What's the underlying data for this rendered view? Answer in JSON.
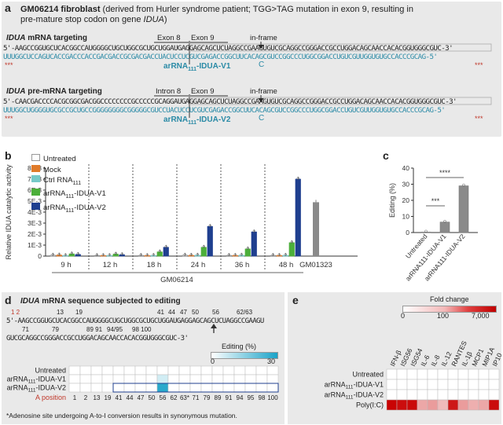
{
  "panel_a": {
    "label": "a",
    "title_bold": "GM06214 fibroblast",
    "title_rest": " (derived from Hurler syndrome patient; TGG>TAG mutation in exon 9, resulting in",
    "title_line2a": "pre-mature stop codon on gene ",
    "title_line2b": "IDUA",
    "title_line2c": ")",
    "mrna_heading_italic": "IDUA",
    "mrna_heading_rest": " mRNA targeting",
    "exon8": "Exon 8",
    "exon9": "Exon 9",
    "inframe": "in-frame",
    "mrna_top_prefix": "5'-",
    "mrna_top_seq": "AAGCCGGUGCUCACGGCCAUGGGGCUGCUGGCGCUGCUGGAUGAGGAGCAGCUCUAGGCCGAAGUGUCGCAGGCCGGGACCGCCUGGACAGCAACCACACGGUGGGCGUC",
    "mrna_top_suffix": "-3'",
    "mrna_bot_seq": "UUUGGCUCCAGUCACCGACCCACCGACGACCGCGACGACCUACUCCUCGUCGAGACCGGCUUCACAGCGUCCGGCCCUGGCGGACCUGUCGUUGGUGUGCCACCCGCAG",
    "mrna_bot_suffix": "-5'",
    "guide1": "arRNA",
    "guide1_sub": "111",
    "guide1_rest": "-IDUA-V1",
    "mm_c": "C",
    "pre_heading_italic": "IDUA",
    "pre_heading_rest": " pre-mRNA targeting",
    "intron8": "Intron 8",
    "exon9b": "Exon 9",
    "inframe2": "in-frame",
    "pre_top_prefix": "5'-",
    "pre_top_seq": "CAACGACCCCACGCGGCGACGGCCCCCCCCGCCCCCGCAGGAUGAGGAGCAGCUCUAGGCCGAAGUGUCGCAGGCCGGGACCGCCUGGACAGCAACCACACGGUGGGCGUC",
    "pre_top_suffix": "-3'",
    "pre_bot_seq": "UUUGGCUGGGGUGCGCCGCUGCCGGGGGGGGCGGGGGCGUCCUACUCCUCGUCGAGACCGGCUUCACAGCGUCCGGCCCUGGCGGACCUGUCGUUGGUGUGCCACCCGCAG",
    "pre_bot_suffix": "-5'",
    "guide2": "arRNA",
    "guide2_sub": "111",
    "guide2_rest": "-IDUA-V2",
    "mm_c2": "C",
    "stars": "***"
  },
  "panel_b": {
    "label": "b",
    "legend": [
      "Untreated",
      "Mock",
      "Ctrl RNA",
      "arRNA",
      "arRNA"
    ],
    "legend_sub": [
      "",
      "",
      "111",
      "111",
      "111"
    ],
    "legend_rest": [
      "",
      "",
      "",
      "-IDUA-V1",
      "-IDUA-V2"
    ],
    "colors": {
      "untreated": "#ffffff",
      "mock": "#e07b2a",
      "ctrl": "#77c9c8",
      "v1": "#4caf3a",
      "v2": "#1f3f8f",
      "gm01323": "#8a8a8a"
    },
    "gm06214": "GM06214",
    "gm01323": "GM01323"
  },
  "panel_c": {
    "label": "c",
    "sig1": "***",
    "sig2": "****"
  },
  "panel_d": {
    "label": "d",
    "heading_italic": "IDUA",
    "heading_rest": " mRNA sequence subjected to editing",
    "line1_prefix": "5'-",
    "line1_seq": "AAGCCGGUGCUCACGGCCAUGGGGCUGCUGGCGCUGCUGGAUGAGGAGCAGCUCUAGGCCGAAGU",
    "line2_seq": "GUCGCAGGCCGGGACCGCCUGGACAGCAACCACACGGUGGGCGUC",
    "line2_suffix": "-3'",
    "pos_top": [
      "1 2",
      "13",
      "19",
      "41",
      "44",
      "47",
      "50",
      "56",
      "62/63"
    ],
    "pos_bot": [
      "71",
      "79",
      "89 91",
      "94/95",
      "98 100"
    ],
    "editing_label": "Editing (%)",
    "editing_min": "0",
    "editing_max": "30",
    "rows": [
      "Untreated",
      "arRNA",
      "arRNA"
    ],
    "rows_sub": [
      "",
      "111",
      "111"
    ],
    "rows_rest": [
      "",
      "-IDUA-V1",
      "-IDUA-V2"
    ],
    "a_position_label": "A position",
    "positions": [
      "1",
      "2",
      "13",
      "19",
      "41",
      "44",
      "47",
      "50",
      "56",
      "62",
      "63*",
      "71",
      "79",
      "89",
      "91",
      "94",
      "95",
      "98",
      "100"
    ],
    "footnote": "*Adenosine site undergoing A-to-I conversion results in synonymous mutation."
  },
  "panel_e": {
    "label": "e",
    "fold_label": "Fold change",
    "scale_min": "0",
    "scale_mid": "100",
    "scale_max": "7,000",
    "columns": [
      "IFN-β",
      "ISG56",
      "ISG54",
      "IL-6",
      "IL-8",
      "IL-12",
      "RANTES",
      "IL-1β",
      "MCP1",
      "MIP1A",
      "IP10"
    ],
    "rows": [
      "Untreated",
      "arRNA",
      "arRNA",
      "Poly(I:C)"
    ],
    "rows_sub": [
      "",
      "111",
      "111",
      ""
    ],
    "rows_rest": [
      "",
      "-IDUA-V1",
      "-IDUA-V2",
      ""
    ]
  },
  "chart_data": [
    {
      "type": "bar",
      "title": "",
      "ylabel": "Relative IDUA catalytic activity",
      "ylim": [
        0,
        0.008
      ],
      "yticks": [
        "0",
        "1E-3",
        "2E-3",
        "3E-3",
        "4E-3",
        "5E-3",
        "6E-3",
        "7E-3",
        "8E-3"
      ],
      "categories": [
        "9 h",
        "12 h",
        "18 h",
        "24 h",
        "36 h",
        "48 h",
        "GM01323"
      ],
      "series": [
        {
          "name": "Untreated",
          "values": [
            8e-05,
            5e-05,
            6e-05,
            8e-05,
            6e-05,
            6e-05,
            null
          ]
        },
        {
          "name": "Mock",
          "values": [
            0.0001,
            5e-05,
            5e-05,
            7e-05,
            6e-05,
            6e-05,
            null
          ]
        },
        {
          "name": "Ctrl RNA111",
          "values": [
            5e-05,
            5e-05,
            6e-05,
            8e-05,
            8e-05,
            7e-05,
            null
          ]
        },
        {
          "name": "arRNA111-IDUA-V1",
          "values": [
            0.0002,
            0.00018,
            0.00038,
            0.0008,
            0.00065,
            0.00122,
            null
          ]
        },
        {
          "name": "arRNA111-IDUA-V2",
          "values": [
            0.00015,
            0.00013,
            0.0008,
            0.0027,
            0.0022,
            0.007,
            null
          ]
        },
        {
          "name": "GM01323",
          "values": [
            null,
            null,
            null,
            null,
            null,
            null,
            0.0049
          ]
        }
      ]
    },
    {
      "type": "bar",
      "ylabel": "Editing (%)",
      "ylim": [
        0,
        40
      ],
      "yticks": [
        "0",
        "10",
        "20",
        "30",
        "40"
      ],
      "categories": [
        "Untreated",
        "arRNA111-IDUA-V1",
        "arRNA111-IDUA-V2"
      ],
      "values": [
        0.3,
        6.5,
        29
      ]
    },
    {
      "type": "heatmap",
      "title": "Editing (%)",
      "rows": [
        "Untreated",
        "arRNA111-IDUA-V1",
        "arRNA111-IDUA-V2"
      ],
      "columns": [
        "1",
        "2",
        "13",
        "19",
        "41",
        "44",
        "47",
        "50",
        "56",
        "62",
        "63*",
        "71",
        "79",
        "89",
        "91",
        "94",
        "95",
        "98",
        "100"
      ],
      "values": [
        [
          0,
          0,
          0,
          0,
          0,
          0,
          0,
          0,
          0,
          0,
          0,
          0,
          0,
          0,
          0,
          0,
          0,
          0,
          0
        ],
        [
          0,
          0,
          0,
          0,
          0,
          0,
          0,
          0,
          6,
          0,
          0,
          0,
          0,
          0,
          0,
          0,
          0,
          0,
          0
        ],
        [
          0,
          0,
          0,
          0,
          0,
          0,
          0,
          0,
          28,
          0,
          0,
          0,
          0,
          0,
          0,
          0,
          0,
          0,
          0
        ]
      ]
    },
    {
      "type": "heatmap",
      "title": "Fold change",
      "rows": [
        "Untreated",
        "arRNA111-IDUA-V1",
        "arRNA111-IDUA-V2",
        "Poly(I:C)"
      ],
      "columns": [
        "IFN-β",
        "ISG56",
        "ISG54",
        "IL-6",
        "IL-8",
        "IL-12",
        "RANTES",
        "IL-1β",
        "MCP1",
        "MIP1A",
        "IP10"
      ],
      "values": [
        [
          0,
          0,
          0,
          0,
          0,
          0,
          0,
          0,
          0,
          0,
          0
        ],
        [
          0,
          0,
          0,
          0,
          0,
          0,
          0,
          0,
          0,
          0,
          0
        ],
        [
          0,
          0,
          0,
          0,
          0,
          0,
          0,
          0,
          0,
          0,
          0
        ],
        [
          6000,
          4500,
          5200,
          20,
          30,
          10,
          3000,
          30,
          15,
          20,
          4800
        ]
      ]
    }
  ]
}
